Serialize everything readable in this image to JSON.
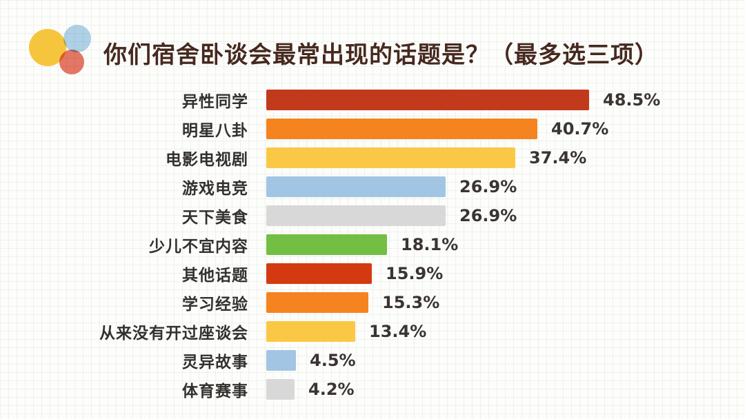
{
  "logo": {
    "circles": [
      {
        "name": "yellow-circle",
        "color": "#F6C53E"
      },
      {
        "name": "blue-circle",
        "color": "#A9CDE8"
      },
      {
        "name": "red-circle",
        "color": "#E2604A"
      }
    ]
  },
  "chart_data": {
    "type": "bar",
    "orientation": "horizontal",
    "title": "你们宿舍卧谈会最常出现的话题是？（最多选三项）",
    "categories": [
      "异性同学",
      "明星八卦",
      "电影电视剧",
      "游戏电竞",
      "天下美食",
      "少儿不宜内容",
      "其他话题",
      "学习经验",
      "从来没有开过座谈会",
      "灵异故事",
      "体育赛事"
    ],
    "values": [
      48.5,
      40.7,
      37.4,
      26.9,
      26.9,
      18.1,
      15.9,
      15.3,
      13.4,
      4.5,
      4.2
    ],
    "value_labels": [
      "48.5%",
      "40.7%",
      "37.4%",
      "26.9%",
      "26.9%",
      "18.1%",
      "15.9%",
      "15.3%",
      "13.4%",
      "4.5%",
      "4.2%"
    ],
    "bar_colors": [
      "#C23A1C",
      "#F5831F",
      "#FAC844",
      "#A2C5E4",
      "#D8D8D8",
      "#72BF44",
      "#D43A12",
      "#F5831F",
      "#FAC844",
      "#A2C5E4",
      "#D8D8D8"
    ],
    "xlim": [
      0,
      50
    ],
    "grid": false,
    "legend": false,
    "title_color": "#46291f"
  }
}
